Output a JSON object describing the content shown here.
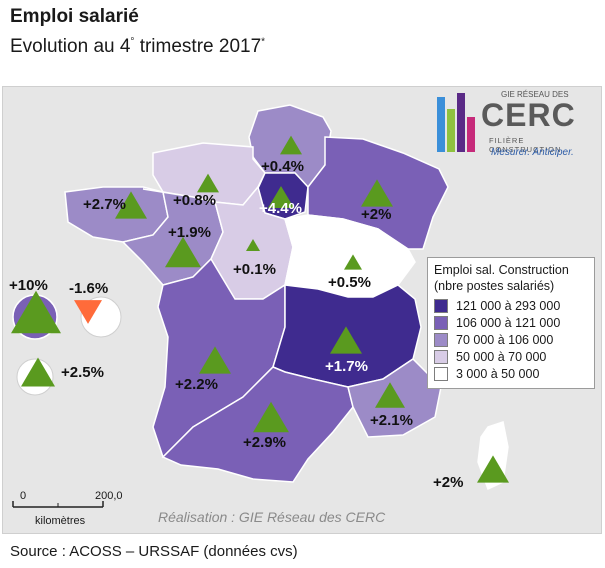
{
  "title": "Emploi salarié",
  "subtitle": "Evolution au 4",
  "subtitle_mark": "°",
  "subtitle_rest": " trimestre 2017",
  "subtitle_note": "*",
  "colors": {
    "class1": "#3f2b8f",
    "class2": "#7a60b6",
    "class3": "#9c8bc7",
    "class4": "#d8cce6",
    "class5": "#ffffff",
    "positive": "#5a9a1f",
    "negative": "#ff6b3a",
    "background": "#e6e6e6"
  },
  "legend": {
    "title_line1": "Emploi sal. Construction",
    "title_line2": "(nbre postes salariés)",
    "classes": [
      {
        "label": "121 000 à 293 000",
        "color": "#3f2b8f"
      },
      {
        "label": "106 000 à 121 000",
        "color": "#7a60b6"
      },
      {
        "label": "70 000 à 106 000",
        "color": "#9c8bc7"
      },
      {
        "label": "50 000 à 70 000",
        "color": "#d8cce6"
      },
      {
        "label": "3 000 à 50 000",
        "color": "#ffffff"
      }
    ]
  },
  "regions": [
    {
      "name": "Bretagne",
      "change": "+2.7%",
      "direction": "up",
      "class": 3
    },
    {
      "name": "Normandie",
      "change": "+0.8%",
      "direction": "up",
      "class": 4
    },
    {
      "name": "Hauts-de-France",
      "change": "+0.4%",
      "direction": "up",
      "class": 3
    },
    {
      "name": "Île-de-France",
      "change": "+4.4%",
      "direction": "up",
      "class": 1
    },
    {
      "name": "Grand Est",
      "change": "+2%",
      "direction": "up",
      "class": 2
    },
    {
      "name": "Pays de la Loire",
      "change": "+1.9%",
      "direction": "up",
      "class": 3
    },
    {
      "name": "Centre-Val de Loire",
      "change": "+0.1%",
      "direction": "up",
      "class": 4
    },
    {
      "name": "Bourgogne-Franche-Comté",
      "change": "+0.5%",
      "direction": "up",
      "class": 5
    },
    {
      "name": "Nouvelle-Aquitaine",
      "change": "+2.2%",
      "direction": "up",
      "class": 2
    },
    {
      "name": "Auvergne-Rhône-Alpes",
      "change": "+1.7%",
      "direction": "up",
      "class": 1
    },
    {
      "name": "Occitanie",
      "change": "+2.9%",
      "direction": "up",
      "class": 2
    },
    {
      "name": "Provence-Alpes-Côte d'Azur",
      "change": "+2.1%",
      "direction": "up",
      "class": 3
    },
    {
      "name": "Corse",
      "change": "+2%",
      "direction": "up",
      "class": 5
    }
  ],
  "overseas": [
    {
      "change": "+10%",
      "direction": "up"
    },
    {
      "change": "-1.6%",
      "direction": "down"
    },
    {
      "change": "+2.5%",
      "direction": "up"
    }
  ],
  "scale": {
    "zero": "0",
    "max": "200,0",
    "unit": "kilomètres"
  },
  "logo": {
    "network": "GIE RÉSEAU DES",
    "name": "CERC",
    "sector": "FILIÈRE CONSTRUCTION",
    "slogan": "Mesurer. Anticiper."
  },
  "credit": "Réalisation : GIE Réseau des CERC",
  "source": "Source : ACOSS – URSSAF (données cvs)"
}
